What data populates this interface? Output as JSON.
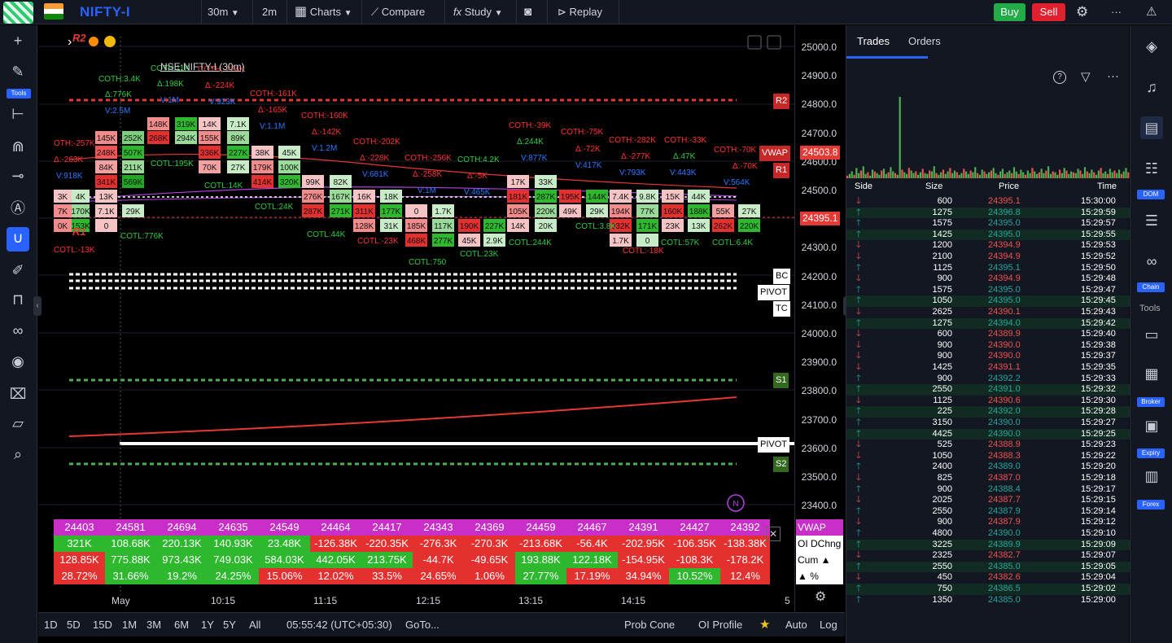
{
  "topbar": {
    "symbol": "NIFTY-I",
    "interval": "30m",
    "interval_alt": "2m",
    "charts_label": "Charts",
    "compare_label": "Compare",
    "study_label": "Study",
    "replay_label": "Replay",
    "buy_label": "Buy",
    "sell_label": "Sell",
    "more_label": "···"
  },
  "left_toolbar": {
    "tools_badge": "Tools"
  },
  "legend": {
    "title": "NSE:NIFTY-I (30m)"
  },
  "price_axis": {
    "labels": [
      "25000.0",
      "24900.0",
      "24800.0",
      "24700.0",
      "24600.0",
      "24500.0",
      "24400.0",
      "24300.0",
      "24200.0",
      "24100.0",
      "24000.0",
      "23900.0",
      "23800.0",
      "23700.0",
      "23600.0",
      "23500.0",
      "23400.0"
    ],
    "vwap_tag": "24503.8",
    "last_tag": "24395.1"
  },
  "levels": {
    "r2": "R2",
    "vwap": "VWAP",
    "r1": "R1",
    "bc": "BC",
    "pivot": "PIVOT",
    "tc": "TC",
    "s1": "S1",
    "pivot2": "PIVOT",
    "s2": "S2",
    "r2_chart": "R2",
    "r1_chart": "R1",
    "n_badge": "N"
  },
  "colors": {
    "up": "#26a69a",
    "down": "#ef5350",
    "accent": "#2962ff",
    "red_line": "#e53935",
    "green_line": "#4caf50"
  },
  "chart_annotations": [
    {
      "t": "COTH:3.4K",
      "c": "#2ecc40"
    },
    {
      "t": "Δ:776K",
      "c": "#2ecc40"
    },
    {
      "t": "V:2.5M",
      "c": "#2979ff"
    },
    {
      "t": "COTH:11K",
      "c": "#2ecc40"
    },
    {
      "t": "Δ:198K",
      "c": "#2ecc40"
    },
    {
      "t": "V:1M",
      "c": "#2979ff"
    },
    {
      "t": "COTH:-224K",
      "c": "#ff3333"
    },
    {
      "t": "Δ:-224K",
      "c": "#ff3333"
    },
    {
      "t": "V:923K",
      "c": "#2979ff"
    },
    {
      "t": "COTH:-161K",
      "c": "#ff3333"
    },
    {
      "t": "Δ:-165K",
      "c": "#ff3333"
    },
    {
      "t": "V:1.1M",
      "c": "#2979ff"
    },
    {
      "t": "COTH:-160K",
      "c": "#ff3333"
    },
    {
      "t": "Δ:-142K",
      "c": "#ff3333"
    },
    {
      "t": "V:1.2M",
      "c": "#2979ff"
    },
    {
      "t": "COTH:-202K",
      "c": "#ff3333"
    },
    {
      "t": "Δ:-228K",
      "c": "#ff3333"
    },
    {
      "t": "V:681K",
      "c": "#2979ff"
    },
    {
      "t": "COTH:-256K",
      "c": "#ff3333"
    },
    {
      "t": "Δ:-258K",
      "c": "#ff3333"
    },
    {
      "t": "V:1M",
      "c": "#2979ff"
    },
    {
      "t": "COTH:4.2K",
      "c": "#2ecc40"
    },
    {
      "t": "Δ:-5K",
      "c": "#ff3333"
    },
    {
      "t": "V:465K",
      "c": "#2979ff"
    },
    {
      "t": "COTH:-39K",
      "c": "#ff3333"
    },
    {
      "t": "Δ:244K",
      "c": "#2ecc40"
    },
    {
      "t": "V:877K",
      "c": "#2979ff"
    },
    {
      "t": "COTH:-75K",
      "c": "#ff3333"
    },
    {
      "t": "Δ:-72K",
      "c": "#ff3333"
    },
    {
      "t": "V:417K",
      "c": "#2979ff"
    },
    {
      "t": "COTH:-282K",
      "c": "#ff3333"
    },
    {
      "t": "Δ:-277K",
      "c": "#ff3333"
    },
    {
      "t": "V:793K",
      "c": "#2979ff"
    },
    {
      "t": "COTH:-33K",
      "c": "#ff3333"
    },
    {
      "t": "Δ:47K",
      "c": "#2ecc40"
    },
    {
      "t": "V:443K",
      "c": "#2979ff"
    },
    {
      "t": "COTH:-70K",
      "c": "#ff3333"
    },
    {
      "t": "Δ:-70K",
      "c": "#ff3333"
    },
    {
      "t": "V:564K",
      "c": "#2979ff"
    },
    {
      "t": "OTH:-257K",
      "c": "#ff3333"
    },
    {
      "t": "Δ:-263K",
      "c": "#ff3333"
    },
    {
      "t": "V:918K",
      "c": "#2979ff"
    },
    {
      "t": "COTL:195K",
      "c": "#2ecc40"
    },
    {
      "t": "COTL:14K",
      "c": "#2ecc40"
    },
    {
      "t": "COTL:24K",
      "c": "#2ecc40"
    },
    {
      "t": "COTL:44K",
      "c": "#2ecc40"
    },
    {
      "t": "COTL:-23K",
      "c": "#ff3333"
    },
    {
      "t": "COTL:750",
      "c": "#2ecc40"
    },
    {
      "t": "COTL:23K",
      "c": "#2ecc40"
    },
    {
      "t": "COTL:244K",
      "c": "#2ecc40"
    },
    {
      "t": "COTL:3.8K",
      "c": "#2ecc40"
    },
    {
      "t": "COTL:-18K",
      "c": "#ff3333"
    },
    {
      "t": "COTL:57K",
      "c": "#2ecc40"
    },
    {
      "t": "COTL:6.4K",
      "c": "#2ecc40"
    },
    {
      "t": "COTL:-13K",
      "c": "#ff3333"
    },
    {
      "t": "COTL:776K",
      "c": "#2ecc40"
    }
  ],
  "footprint_cells": [
    {
      "t": "145K",
      "c": "#f28b8b"
    },
    {
      "t": "248K",
      "c": "#f25555"
    },
    {
      "t": "84K",
      "c": "#f2a0a0"
    },
    {
      "t": "341K",
      "c": "#e53030"
    },
    {
      "t": "13K",
      "c": "#f6c4c4"
    },
    {
      "t": "7.1K",
      "c": "#f6c4c4"
    },
    {
      "t": "0",
      "c": "#f6c4c4"
    },
    {
      "t": "252K",
      "c": "#7ccf7c"
    },
    {
      "t": "507K",
      "c": "#2eb82e"
    },
    {
      "t": "211K",
      "c": "#9adb9a"
    },
    {
      "t": "569K",
      "c": "#22a822"
    },
    {
      "t": "29K",
      "c": "#c8ecc8"
    },
    {
      "t": "148K",
      "c": "#f28b8b"
    },
    {
      "t": "268K",
      "c": "#e53030"
    },
    {
      "t": "319K",
      "c": "#2eb82e"
    },
    {
      "t": "294K",
      "c": "#9adb9a"
    },
    {
      "t": "14K",
      "c": "#f6c4c4"
    },
    {
      "t": "155K",
      "c": "#f28b8b"
    },
    {
      "t": "336K",
      "c": "#e53030"
    },
    {
      "t": "70K",
      "c": "#f2a0a0"
    },
    {
      "t": "7.1K",
      "c": "#c8ecc8"
    },
    {
      "t": "89K",
      "c": "#9adb9a"
    },
    {
      "t": "227K",
      "c": "#2eb82e"
    },
    {
      "t": "27K",
      "c": "#c8ecc8"
    },
    {
      "t": "38K",
      "c": "#f6c4c4"
    },
    {
      "t": "179K",
      "c": "#f28b8b"
    },
    {
      "t": "414K",
      "c": "#e53030"
    },
    {
      "t": "45K",
      "c": "#c8ecc8"
    },
    {
      "t": "100K",
      "c": "#9adb9a"
    },
    {
      "t": "320K",
      "c": "#2eb82e"
    },
    {
      "t": "99K",
      "c": "#f6c4c4"
    },
    {
      "t": "276K",
      "c": "#f28b8b"
    },
    {
      "t": "287K",
      "c": "#e53030"
    },
    {
      "t": "82K",
      "c": "#c8ecc8"
    },
    {
      "t": "167K",
      "c": "#9adb9a"
    },
    {
      "t": "271K",
      "c": "#2eb82e"
    },
    {
      "t": "16K",
      "c": "#f6c4c4"
    },
    {
      "t": "311K",
      "c": "#e53030"
    },
    {
      "t": "128K",
      "c": "#f28b8b"
    },
    {
      "t": "18K",
      "c": "#c8ecc8"
    },
    {
      "t": "177K",
      "c": "#2eb82e"
    },
    {
      "t": "31K",
      "c": "#c8ecc8"
    },
    {
      "t": "0",
      "c": "#f6c4c4"
    },
    {
      "t": "185K",
      "c": "#f28b8b"
    },
    {
      "t": "468K",
      "c": "#e53030"
    },
    {
      "t": "1.7K",
      "c": "#c8ecc8"
    },
    {
      "t": "117K",
      "c": "#9adb9a"
    },
    {
      "t": "277K",
      "c": "#2eb82e"
    },
    {
      "t": "190K",
      "c": "#e53030"
    },
    {
      "t": "45K",
      "c": "#f6c4c4"
    },
    {
      "t": "227K",
      "c": "#2eb82e"
    },
    {
      "t": "2.9K",
      "c": "#c8ecc8"
    },
    {
      "t": "17K",
      "c": "#f6c4c4"
    },
    {
      "t": "181K",
      "c": "#e53030"
    },
    {
      "t": "105K",
      "c": "#f28b8b"
    },
    {
      "t": "14K",
      "c": "#f6c4c4"
    },
    {
      "t": "33K",
      "c": "#c8ecc8"
    },
    {
      "t": "287K",
      "c": "#2eb82e"
    },
    {
      "t": "220K",
      "c": "#9adb9a"
    },
    {
      "t": "20K",
      "c": "#c8ecc8"
    },
    {
      "t": "195K",
      "c": "#e53030"
    },
    {
      "t": "49K",
      "c": "#f6c4c4"
    },
    {
      "t": "144K",
      "c": "#2eb82e"
    },
    {
      "t": "29K",
      "c": "#c8ecc8"
    },
    {
      "t": "7.4K",
      "c": "#f6c4c4"
    },
    {
      "t": "194K",
      "c": "#f28b8b"
    },
    {
      "t": "332K",
      "c": "#e53030"
    },
    {
      "t": "1.7K",
      "c": "#f6c4c4"
    },
    {
      "t": "9.8K",
      "c": "#c8ecc8"
    },
    {
      "t": "77K",
      "c": "#9adb9a"
    },
    {
      "t": "171K",
      "c": "#2eb82e"
    },
    {
      "t": "0",
      "c": "#c8ecc8"
    },
    {
      "t": "15K",
      "c": "#f6c4c4"
    },
    {
      "t": "160K",
      "c": "#e53030"
    },
    {
      "t": "23K",
      "c": "#f6c4c4"
    },
    {
      "t": "44K",
      "c": "#c8ecc8"
    },
    {
      "t": "188K",
      "c": "#2eb82e"
    },
    {
      "t": "13K",
      "c": "#c8ecc8"
    },
    {
      "t": "55K",
      "c": "#f2a0a0"
    },
    {
      "t": "262K",
      "c": "#e53030"
    },
    {
      "t": "27K",
      "c": "#c8ecc8"
    },
    {
      "t": "220K",
      "c": "#2eb82e"
    },
    {
      "t": "3K",
      "c": "#f6c4c4"
    },
    {
      "t": "7K",
      "c": "#f28b8b"
    },
    {
      "t": "0K",
      "c": "#f28b8b"
    },
    {
      "t": "4K",
      "c": "#c8ecc8"
    },
    {
      "t": "170K",
      "c": "#9adb9a"
    },
    {
      "t": "153K",
      "c": "#2eb82e"
    }
  ],
  "oi_table": {
    "row_labels": [
      "VWAP",
      "OI DChng",
      "Cum ▲",
      "▲ %"
    ],
    "vwap": [
      "24403",
      "24581",
      "24694",
      "24635",
      "24549",
      "24464",
      "24417",
      "24343",
      "24369",
      "24459",
      "24467",
      "24391",
      "24427",
      "24392"
    ],
    "oi_dchng": [
      "321K",
      "108.68K",
      "220.13K",
      "140.93K",
      "23.48K",
      "-126.38K",
      "-220.35K",
      "-276.3K",
      "-270.3K",
      "-213.68K",
      "-56.4K",
      "-202.95K",
      "-106.35K",
      "-138.38K"
    ],
    "cum": [
      "128.85K",
      "775.88K",
      "973.43K",
      "749.03K",
      "584.03K",
      "442.05K",
      "213.75K",
      "-44.7K",
      "-49.65K",
      "193.88K",
      "122.18K",
      "-154.95K",
      "-108.3K",
      "-178.2K"
    ],
    "pct": [
      "28.72%",
      "31.66%",
      "19.2%",
      "24.25%",
      "15.06%",
      "12.02%",
      "33.5%",
      "24.65%",
      "1.06%",
      "27.77%",
      "17.19%",
      "34.94%",
      "10.52%",
      "12.4%"
    ],
    "oi_colors": [
      "#2eb82e",
      "#2eb82e",
      "#2eb82e",
      "#2eb82e",
      "#2eb82e",
      "#e53030",
      "#e53030",
      "#e53030",
      "#e53030",
      "#e53030",
      "#e53030",
      "#e53030",
      "#e53030",
      "#e53030"
    ],
    "cum_colors": [
      "#e53030",
      "#2eb82e",
      "#2eb82e",
      "#2eb82e",
      "#2eb82e",
      "#2eb82e",
      "#2eb82e",
      "#e53030",
      "#e53030",
      "#2eb82e",
      "#2eb82e",
      "#e53030",
      "#e53030",
      "#e53030"
    ],
    "pct_colors": [
      "#e53030",
      "#2eb82e",
      "#2eb82e",
      "#2eb82e",
      "#e53030",
      "#e53030",
      "#e53030",
      "#e53030",
      "#e53030",
      "#2eb82e",
      "#e53030",
      "#e53030",
      "#2eb82e",
      "#e53030"
    ]
  },
  "time_axis": [
    "May",
    "10:15",
    "11:15",
    "12:15",
    "13:15",
    "14:15",
    "5"
  ],
  "bottombar": {
    "ranges": [
      "1D",
      "5D",
      "15D",
      "1M",
      "3M",
      "6M",
      "1Y",
      "5Y",
      "All"
    ],
    "clock": "05:55:42 (UTC+05:30)",
    "goto": "GoTo...",
    "prob_cone": "Prob Cone",
    "oi_profile": "OI Profile",
    "auto": "Auto",
    "log": "Log"
  },
  "trades_panel": {
    "tab_trades": "Trades",
    "tab_orders": "Orders",
    "headers": {
      "side": "Side",
      "size": "Size",
      "price": "Price",
      "time": "Time"
    },
    "rows": [
      {
        "d": "dn",
        "size": "600",
        "price": "24395.1",
        "time": "15:30:00"
      },
      {
        "d": "up",
        "size": "1275",
        "price": "24396.8",
        "time": "15:29:59"
      },
      {
        "d": "up",
        "size": "1575",
        "price": "24395.0",
        "time": "15:29:57"
      },
      {
        "d": "up",
        "size": "1425",
        "price": "24395.0",
        "time": "15:29:55"
      },
      {
        "d": "dn",
        "size": "1200",
        "price": "24394.9",
        "time": "15:29:53"
      },
      {
        "d": "dn",
        "size": "2100",
        "price": "24394.9",
        "time": "15:29:52"
      },
      {
        "d": "up",
        "size": "1125",
        "price": "24395.1",
        "time": "15:29:50"
      },
      {
        "d": "dn",
        "size": "900",
        "price": "24394.9",
        "time": "15:29:48"
      },
      {
        "d": "up",
        "size": "1575",
        "price": "24395.0",
        "time": "15:29:47"
      },
      {
        "d": "up",
        "size": "1050",
        "price": "24395.0",
        "time": "15:29:45"
      },
      {
        "d": "dn",
        "size": "2625",
        "price": "24390.1",
        "time": "15:29:43"
      },
      {
        "d": "up",
        "size": "1275",
        "price": "24394.0",
        "time": "15:29:42"
      },
      {
        "d": "dn",
        "size": "600",
        "price": "24389.9",
        "time": "15:29:40"
      },
      {
        "d": "dn",
        "size": "900",
        "price": "24390.0",
        "time": "15:29:38"
      },
      {
        "d": "dn",
        "size": "900",
        "price": "24390.0",
        "time": "15:29:37"
      },
      {
        "d": "dn",
        "size": "1425",
        "price": "24391.1",
        "time": "15:29:35"
      },
      {
        "d": "up",
        "size": "900",
        "price": "24392.2",
        "time": "15:29:33"
      },
      {
        "d": "up",
        "size": "2550",
        "price": "24391.0",
        "time": "15:29:32"
      },
      {
        "d": "dn",
        "size": "1125",
        "price": "24390.6",
        "time": "15:29:30"
      },
      {
        "d": "up",
        "size": "225",
        "price": "24392.0",
        "time": "15:29:28"
      },
      {
        "d": "up",
        "size": "3150",
        "price": "24390.0",
        "time": "15:29:27"
      },
      {
        "d": "up",
        "size": "4425",
        "price": "24390.0",
        "time": "15:29:25"
      },
      {
        "d": "dn",
        "size": "525",
        "price": "24388.9",
        "time": "15:29:23"
      },
      {
        "d": "dn",
        "size": "1050",
        "price": "24388.3",
        "time": "15:29:22"
      },
      {
        "d": "up",
        "size": "2400",
        "price": "24389.0",
        "time": "15:29:20"
      },
      {
        "d": "dn",
        "size": "825",
        "price": "24387.0",
        "time": "15:29:18"
      },
      {
        "d": "up",
        "size": "900",
        "price": "24388.4",
        "time": "15:29:17"
      },
      {
        "d": "dn",
        "size": "2025",
        "price": "24387.7",
        "time": "15:29:15"
      },
      {
        "d": "up",
        "size": "2550",
        "price": "24387.9",
        "time": "15:29:14"
      },
      {
        "d": "dn",
        "size": "900",
        "price": "24387.9",
        "time": "15:29:12"
      },
      {
        "d": "up",
        "size": "4800",
        "price": "24390.0",
        "time": "15:29:10"
      },
      {
        "d": "up",
        "size": "3225",
        "price": "24389.9",
        "time": "15:29:09"
      },
      {
        "d": "dn",
        "size": "2325",
        "price": "24382.7",
        "time": "15:29:07"
      },
      {
        "d": "up",
        "size": "2550",
        "price": "24385.0",
        "time": "15:29:05"
      },
      {
        "d": "dn",
        "size": "450",
        "price": "24382.6",
        "time": "15:29:04"
      },
      {
        "d": "up",
        "size": "750",
        "price": "24386.5",
        "time": "15:29:02"
      },
      {
        "d": "up",
        "size": "1350",
        "price": "24385.0",
        "time": "15:29:00"
      }
    ],
    "volume_bars": [
      3,
      5,
      8,
      4,
      12,
      6,
      9,
      14,
      5,
      7,
      3,
      10,
      8,
      6,
      4,
      9,
      11,
      5,
      7,
      13,
      8,
      6,
      4,
      95,
      10,
      7,
      5,
      12,
      9,
      6,
      8,
      4,
      7,
      11,
      6,
      5,
      9,
      8,
      14,
      6,
      4,
      7,
      10,
      5,
      8,
      12,
      6,
      9,
      7,
      4,
      6,
      11,
      8,
      5,
      9,
      7,
      13,
      6,
      4,
      10,
      8,
      5,
      7,
      9,
      12,
      6,
      4,
      8,
      11,
      5,
      7,
      9,
      6,
      13,
      8,
      5,
      10,
      7,
      4,
      9,
      6,
      12,
      8,
      5,
      7,
      11,
      6,
      9,
      14,
      5,
      8,
      7,
      4,
      10,
      6,
      12,
      9,
      5,
      8,
      7,
      6,
      11,
      9,
      5,
      13,
      8,
      6,
      10,
      7,
      4,
      9,
      12,
      6,
      8,
      5,
      11,
      7,
      9,
      6,
      10,
      5,
      8,
      12,
      7
    ]
  },
  "right_toolbar": {
    "dom_badge": "DOM",
    "chain_badge": "Chain",
    "tools_label": "Tools",
    "broker_badge": "Broker",
    "expiry_badge": "Expiry",
    "forex_badge": "Forex"
  }
}
